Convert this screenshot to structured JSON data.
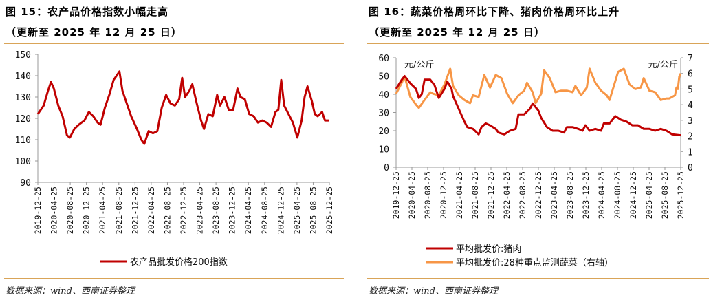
{
  "left": {
    "title": "图 15：农产品价格指数小幅走高",
    "subtitle": "（更新至 2025 年 12 月 25 日）",
    "source": "数据来源：wind、西南证券整理",
    "legend": "农产品批发价格200指数",
    "line_color": "#c00000"
  },
  "right": {
    "title": "图 16：蔬菜价格周环比下降、猪肉价格周环比上升",
    "subtitle": "（更新至 2025 年 12 月 25 日）",
    "source": "数据来源：wind、西南证券整理",
    "unit_left": "元/公斤",
    "unit_right": "元/公斤",
    "legend_pork": "平均批发价:猪肉",
    "legend_veg": "平均批发价:28种重点监测蔬菜（右轴）",
    "pork_color": "#c00000",
    "veg_color": "#f79646"
  },
  "chart_data": [
    {
      "type": "line",
      "title": "图 15：农产品价格指数小幅走高",
      "subtitle": "（更新至 2025 年 12 月 25 日）",
      "xlabel": "",
      "ylabel": "",
      "ylim": [
        90,
        150
      ],
      "yticks": [
        90,
        100,
        110,
        120,
        130,
        140,
        150
      ],
      "categories": [
        "2019-12-25",
        "2020-04-25",
        "2020-08-25",
        "2020-12-25",
        "2021-04-25",
        "2021-08-25",
        "2021-12-25",
        "2022-04-25",
        "2022-08-25",
        "2022-12-25",
        "2023-04-25",
        "2023-08-25",
        "2023-12-25",
        "2024-04-25",
        "2024-08-25",
        "2024-12-25",
        "2025-04-25",
        "2025-08-25",
        "2025-12-25"
      ],
      "legend_position": "bottom",
      "grid": false,
      "series": [
        {
          "name": "农产品批发价格200指数",
          "color": "#c00000",
          "points": [
            [
              0.0,
              122
            ],
            [
              0.02,
              126
            ],
            [
              0.035,
              133
            ],
            [
              0.045,
              137
            ],
            [
              0.055,
              134
            ],
            [
              0.07,
              126
            ],
            [
              0.085,
              121
            ],
            [
              0.1,
              112
            ],
            [
              0.11,
              111
            ],
            [
              0.125,
              115
            ],
            [
              0.14,
              117
            ],
            [
              0.16,
              119
            ],
            [
              0.175,
              123
            ],
            [
              0.19,
              121
            ],
            [
              0.205,
              118
            ],
            [
              0.215,
              117
            ],
            [
              0.23,
              125
            ],
            [
              0.245,
              131
            ],
            [
              0.26,
              138
            ],
            [
              0.27,
              140
            ],
            [
              0.28,
              142
            ],
            [
              0.29,
              133
            ],
            [
              0.305,
              127
            ],
            [
              0.32,
              121
            ],
            [
              0.34,
              115
            ],
            [
              0.355,
              110
            ],
            [
              0.365,
              108
            ],
            [
              0.38,
              114
            ],
            [
              0.395,
              113
            ],
            [
              0.41,
              114
            ],
            [
              0.425,
              125
            ],
            [
              0.44,
              131
            ],
            [
              0.455,
              127
            ],
            [
              0.47,
              126
            ],
            [
              0.485,
              129
            ],
            [
              0.495,
              139
            ],
            [
              0.505,
              130
            ],
            [
              0.52,
              133
            ],
            [
              0.53,
              136
            ],
            [
              0.545,
              127
            ],
            [
              0.56,
              119
            ],
            [
              0.57,
              115
            ],
            [
              0.585,
              122
            ],
            [
              0.6,
              121
            ],
            [
              0.615,
              131
            ],
            [
              0.625,
              126
            ],
            [
              0.64,
              130
            ],
            [
              0.655,
              124
            ],
            [
              0.67,
              124
            ],
            [
              0.685,
              134
            ],
            [
              0.695,
              130
            ],
            [
              0.71,
              129
            ],
            [
              0.725,
              122
            ],
            [
              0.74,
              121
            ],
            [
              0.755,
              118
            ],
            [
              0.77,
              119
            ],
            [
              0.785,
              118
            ],
            [
              0.8,
              116
            ],
            [
              0.815,
              123
            ],
            [
              0.825,
              124
            ],
            [
              0.835,
              138
            ],
            [
              0.845,
              126
            ],
            [
              0.86,
              122
            ],
            [
              0.875,
              118
            ],
            [
              0.89,
              111
            ],
            [
              0.905,
              119
            ],
            [
              0.915,
              130
            ],
            [
              0.925,
              135
            ],
            [
              0.94,
              128
            ],
            [
              0.95,
              122
            ],
            [
              0.96,
              121
            ],
            [
              0.975,
              123
            ],
            [
              0.985,
              119
            ],
            [
              1.0,
              119
            ]
          ]
        }
      ]
    },
    {
      "type": "line",
      "title": "图 16：蔬菜价格周环比下降、猪肉价格周环比上升",
      "subtitle": "（更新至 2025 年 12 月 25 日）",
      "xlabel": "",
      "ylabel": "元/公斤",
      "ylabel_right": "元/公斤",
      "ylim": [
        0,
        60
      ],
      "ylim_right": [
        0,
        7
      ],
      "yticks": [
        0,
        10,
        20,
        30,
        40,
        50,
        60
      ],
      "yticks_right": [
        0,
        1,
        2,
        3,
        4,
        5,
        6,
        7
      ],
      "categories": [
        "2019-12-25",
        "2020-04-25",
        "2020-08-25",
        "2020-12-25",
        "2021-04-25",
        "2021-08-25",
        "2021-12-25",
        "2022-04-25",
        "2022-08-25",
        "2022-12-25",
        "2023-04-25",
        "2023-08-25",
        "2023-12-25",
        "2024-04-25",
        "2024-08-25",
        "2024-12-25",
        "2025-04-25",
        "2025-08-25",
        "2025-12-25"
      ],
      "legend_position": "bottom",
      "grid": false,
      "series": [
        {
          "name": "平均批发价:猪肉",
          "axis": "left",
          "color": "#c00000",
          "points": [
            [
              0.0,
              43
            ],
            [
              0.02,
              48
            ],
            [
              0.03,
              50
            ],
            [
              0.05,
              46
            ],
            [
              0.07,
              43
            ],
            [
              0.08,
              38
            ],
            [
              0.09,
              40
            ],
            [
              0.1,
              48
            ],
            [
              0.12,
              48
            ],
            [
              0.135,
              45
            ],
            [
              0.15,
              38
            ],
            [
              0.17,
              43
            ],
            [
              0.18,
              47
            ],
            [
              0.195,
              43
            ],
            [
              0.2,
              39
            ],
            [
              0.22,
              32
            ],
            [
              0.24,
              25
            ],
            [
              0.25,
              22
            ],
            [
              0.27,
              21
            ],
            [
              0.29,
              18
            ],
            [
              0.3,
              22
            ],
            [
              0.315,
              24
            ],
            [
              0.33,
              23
            ],
            [
              0.35,
              21
            ],
            [
              0.36,
              19
            ],
            [
              0.38,
              18
            ],
            [
              0.4,
              20
            ],
            [
              0.42,
              21
            ],
            [
              0.43,
              29
            ],
            [
              0.45,
              29
            ],
            [
              0.47,
              32
            ],
            [
              0.48,
              35
            ],
            [
              0.5,
              31
            ],
            [
              0.51,
              27
            ],
            [
              0.53,
              22
            ],
            [
              0.55,
              20
            ],
            [
              0.57,
              20
            ],
            [
              0.59,
              19
            ],
            [
              0.6,
              22
            ],
            [
              0.62,
              22
            ],
            [
              0.64,
              21
            ],
            [
              0.655,
              20
            ],
            [
              0.665,
              23
            ],
            [
              0.68,
              20
            ],
            [
              0.7,
              21
            ],
            [
              0.72,
              20
            ],
            [
              0.73,
              24
            ],
            [
              0.75,
              24
            ],
            [
              0.77,
              28
            ],
            [
              0.79,
              26
            ],
            [
              0.81,
              25
            ],
            [
              0.83,
              23
            ],
            [
              0.85,
              23
            ],
            [
              0.87,
              21
            ],
            [
              0.89,
              21
            ],
            [
              0.91,
              20
            ],
            [
              0.93,
              21
            ],
            [
              0.95,
              20
            ],
            [
              0.97,
              18
            ],
            [
              1.0,
              17.5
            ]
          ]
        },
        {
          "name": "平均批发价:28种重点监测蔬菜（右轴）",
          "axis": "right",
          "color": "#f79646",
          "points": [
            [
              0.0,
              4.7
            ],
            [
              0.02,
              5.4
            ],
            [
              0.03,
              5.8
            ],
            [
              0.05,
              4.5
            ],
            [
              0.07,
              4.0
            ],
            [
              0.08,
              3.8
            ],
            [
              0.1,
              4.3
            ],
            [
              0.12,
              4.8
            ],
            [
              0.13,
              4.7
            ],
            [
              0.15,
              4.6
            ],
            [
              0.17,
              5.3
            ],
            [
              0.19,
              6.3
            ],
            [
              0.2,
              5.2
            ],
            [
              0.22,
              4.6
            ],
            [
              0.24,
              4.3
            ],
            [
              0.26,
              4.1
            ],
            [
              0.27,
              4.6
            ],
            [
              0.29,
              4.5
            ],
            [
              0.31,
              5.9
            ],
            [
              0.33,
              5.1
            ],
            [
              0.35,
              5.9
            ],
            [
              0.37,
              5.7
            ],
            [
              0.39,
              4.7
            ],
            [
              0.41,
              4.1
            ],
            [
              0.43,
              4.6
            ],
            [
              0.45,
              4.9
            ],
            [
              0.46,
              5.4
            ],
            [
              0.48,
              4.8
            ],
            [
              0.49,
              4.1
            ],
            [
              0.51,
              4.7
            ],
            [
              0.52,
              6.2
            ],
            [
              0.54,
              5.7
            ],
            [
              0.56,
              4.8
            ],
            [
              0.58,
              4.9
            ],
            [
              0.6,
              4.9
            ],
            [
              0.62,
              4.8
            ],
            [
              0.63,
              5.2
            ],
            [
              0.65,
              4.6
            ],
            [
              0.67,
              5.1
            ],
            [
              0.68,
              6.3
            ],
            [
              0.7,
              5.4
            ],
            [
              0.72,
              4.9
            ],
            [
              0.74,
              4.6
            ],
            [
              0.75,
              4.3
            ],
            [
              0.77,
              5.5
            ],
            [
              0.78,
              6.1
            ],
            [
              0.8,
              6.3
            ],
            [
              0.82,
              5.3
            ],
            [
              0.84,
              5.0
            ],
            [
              0.86,
              5.1
            ],
            [
              0.87,
              5.7
            ],
            [
              0.89,
              4.9
            ],
            [
              0.91,
              4.8
            ],
            [
              0.93,
              4.3
            ],
            [
              0.95,
              4.4
            ],
            [
              0.96,
              4.4
            ],
            [
              0.98,
              4.6
            ],
            [
              0.985,
              5.1
            ],
            [
              0.99,
              5.0
            ],
            [
              0.995,
              5.8
            ],
            [
              1.0,
              6.0
            ]
          ]
        }
      ]
    }
  ]
}
